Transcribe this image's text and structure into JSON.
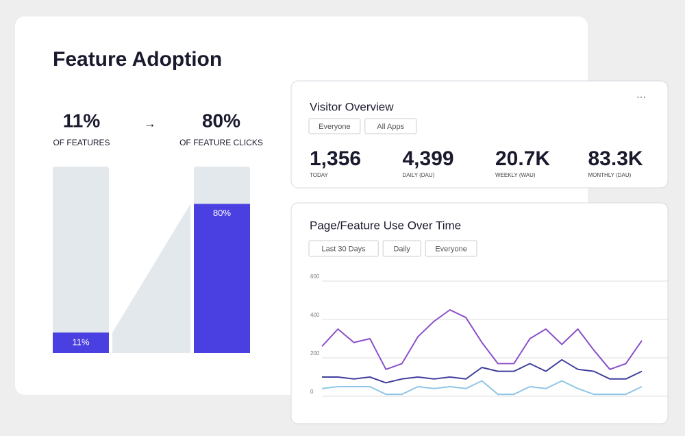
{
  "feature_adoption": {
    "title": "Feature Adoption",
    "stats": [
      {
        "label": "OF FEATURES"
      },
      {
        "label": "OF FEATURE CLICKS"
      }
    ],
    "chart": {
      "type": "bar",
      "values": [
        11,
        80
      ],
      "value_labels": [
        "11%",
        "80%"
      ],
      "ylim": [
        0,
        100
      ],
      "color": "#4a3fe0",
      "track_color": "#e3e8ec"
    }
  },
  "visitor_overview": {
    "title": "Visitor Overview",
    "filters": [
      "Everyone",
      "All Apps"
    ],
    "metrics": [
      {
        "value": "1,356",
        "label": "TODAY"
      },
      {
        "value": "4,399",
        "label": "DAILY (DAU)"
      },
      {
        "value": "20.7K",
        "label": "WEEKLY (WAU)"
      },
      {
        "value": "83.3K",
        "label": "MONTHLY (DAU)"
      }
    ]
  },
  "usage": {
    "title": "Page/Feature Use Over Time",
    "filters": [
      "Last 30 Days",
      "Daily",
      "Everyone"
    ],
    "chart": {
      "type": "line",
      "categories": [
        null,
        null,
        null,
        null,
        null,
        null,
        null,
        null,
        null,
        null,
        null,
        null,
        null,
        null,
        null,
        null,
        null,
        null,
        null,
        null,
        null
      ],
      "series": [
        {
          "color": "#8a4fc9",
          "values": [
            260,
            350,
            280,
            300,
            140,
            170,
            310,
            390,
            450,
            410,
            280,
            170,
            170,
            300,
            350,
            270,
            350,
            240,
            140,
            170,
            290
          ]
        },
        {
          "color": "#3f3f9e",
          "values": [
            100,
            100,
            90,
            100,
            70,
            90,
            100,
            90,
            100,
            90,
            150,
            130,
            130,
            170,
            130,
            190,
            140,
            130,
            90,
            90,
            130
          ]
        },
        {
          "color": "#8fc6e6",
          "values": [
            40,
            50,
            50,
            50,
            10,
            10,
            50,
            40,
            50,
            40,
            80,
            10,
            10,
            50,
            40,
            80,
            40,
            10,
            10,
            10,
            50
          ]
        }
      ],
      "ylim": [
        0,
        600
      ],
      "yticks": [
        0,
        200,
        400,
        600
      ],
      "grid": true
    }
  }
}
